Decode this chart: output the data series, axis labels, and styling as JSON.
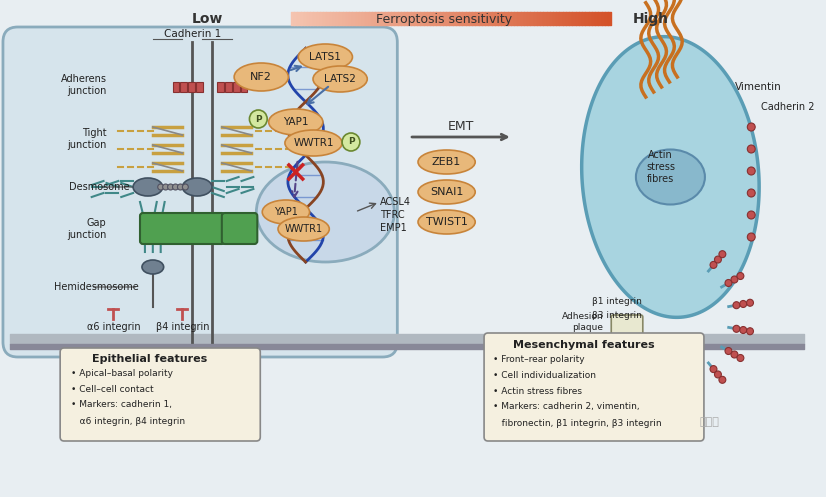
{
  "fig_width": 8.26,
  "fig_height": 4.97,
  "bg_color": "#e8eef2",
  "title_bar": {
    "low_text": "Low",
    "sensitivity_text": "Ferroptosis sensitivity",
    "high_text": "High",
    "gradient_left": "#f5c5b0",
    "gradient_right": "#d4522a"
  },
  "epithelial_cell": {
    "color": "#d6e4ec",
    "border": "#8aabbc"
  },
  "mesenchymal_cell": {
    "color": "#a8d4e0",
    "border": "#5a9db5"
  },
  "protein_ellipse_color": "#e8b87a",
  "protein_ellipse_edge": "#c8843a",
  "nucleus_color": "#c8d8e8",
  "nucleus_edge": "#8aabbc",
  "dna_color1": "#2244aa",
  "dna_color2": "#884422",
  "arrow_color": "#4a6fa5",
  "inhibit_color": "#cc2222",
  "junction_colors": {
    "adherens": "#c05050",
    "tight": "#c8a040",
    "desmosome": "#408888",
    "gap": "#50a050",
    "hemidesmosome": "#408888"
  },
  "vimentin_color": "#c87020",
  "stress_fiber_color": "#c08030",
  "integrin_color": "#c05050",
  "box_bg": "#f5f0e0",
  "box_border": "#888888",
  "text_color": "#222222",
  "watermark": "研小曾",
  "epithelial_features": [
    "Apical–basal polarity",
    "Cell–cell contact",
    "Markers: cadherin 1,",
    "α6 integrin, β4 integrin"
  ],
  "mesenchymal_features": [
    "Front–rear polarity",
    "Cell individualization",
    "Actin stress fibres",
    "Markers: cadherin 2, vimentin,",
    "fibronectin, β1 integrin, β3 integrin"
  ]
}
